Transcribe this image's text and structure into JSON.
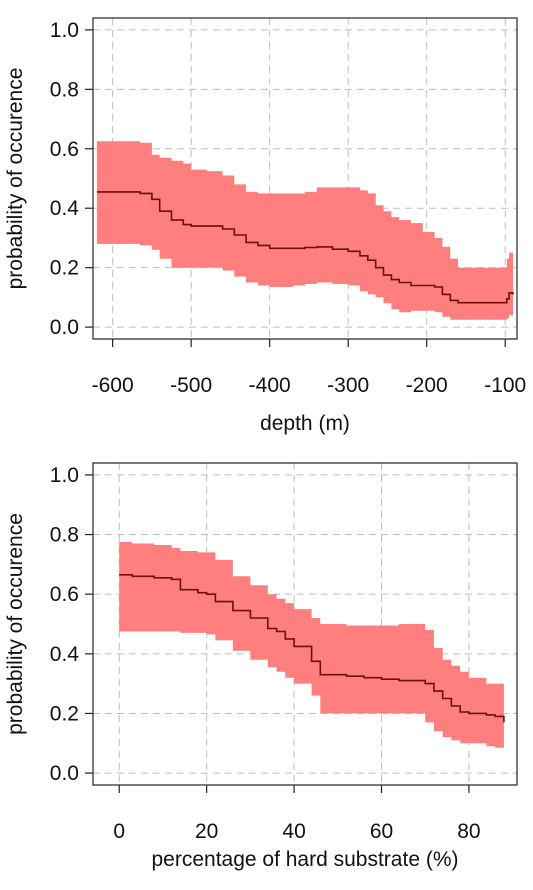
{
  "colors": {
    "band": "#ff7f7f",
    "line": "#6b0f0f",
    "grid": "#bdbdbd"
  },
  "chart_data": [
    {
      "type": "area",
      "xlabel": "depth (m)",
      "ylabel": "probability of occurence",
      "xlim": [
        -625,
        -85
      ],
      "ylim": [
        0,
        1.0
      ],
      "xticks": [
        -600,
        -500,
        -400,
        -300,
        -200,
        -100
      ],
      "xtick_labels": [
        "-600",
        "-500",
        "-400",
        "-300",
        "-200",
        "-100"
      ],
      "yticks": [
        0.0,
        0.2,
        0.4,
        0.6,
        0.8,
        1.0
      ],
      "ytick_labels": [
        "0.0",
        "0.2",
        "0.4",
        "0.6",
        "0.8",
        "1.0"
      ],
      "grid": true,
      "x": [
        -620,
        -600,
        -580,
        -565,
        -550,
        -540,
        -525,
        -510,
        -500,
        -480,
        -460,
        -445,
        -430,
        -415,
        -400,
        -385,
        -370,
        -355,
        -340,
        -320,
        -300,
        -285,
        -275,
        -265,
        -255,
        -245,
        -235,
        -220,
        -205,
        -190,
        -180,
        -170,
        -160,
        -145,
        -130,
        -120,
        -110,
        -105,
        -98,
        -95,
        -90
      ],
      "mean": [
        0.455,
        0.455,
        0.455,
        0.45,
        0.43,
        0.39,
        0.36,
        0.345,
        0.34,
        0.34,
        0.33,
        0.31,
        0.285,
        0.275,
        0.265,
        0.265,
        0.265,
        0.268,
        0.27,
        0.262,
        0.255,
        0.24,
        0.225,
        0.2,
        0.175,
        0.16,
        0.15,
        0.14,
        0.14,
        0.135,
        0.11,
        0.09,
        0.082,
        0.082,
        0.082,
        0.082,
        0.082,
        0.082,
        0.095,
        0.115,
        0.11
      ],
      "upper": [
        0.625,
        0.625,
        0.625,
        0.62,
        0.58,
        0.57,
        0.56,
        0.55,
        0.53,
        0.525,
        0.51,
        0.48,
        0.455,
        0.45,
        0.45,
        0.45,
        0.45,
        0.455,
        0.47,
        0.47,
        0.47,
        0.46,
        0.45,
        0.41,
        0.39,
        0.37,
        0.36,
        0.35,
        0.32,
        0.3,
        0.27,
        0.23,
        0.2,
        0.2,
        0.2,
        0.2,
        0.2,
        0.2,
        0.23,
        0.25,
        0.21
      ],
      "lower": [
        0.28,
        0.28,
        0.28,
        0.275,
        0.26,
        0.23,
        0.2,
        0.2,
        0.2,
        0.2,
        0.19,
        0.17,
        0.15,
        0.14,
        0.135,
        0.135,
        0.14,
        0.145,
        0.15,
        0.145,
        0.14,
        0.12,
        0.11,
        0.1,
        0.08,
        0.06,
        0.05,
        0.055,
        0.055,
        0.05,
        0.035,
        0.025,
        0.025,
        0.025,
        0.025,
        0.025,
        0.025,
        0.025,
        0.03,
        0.04,
        0.04
      ]
    },
    {
      "type": "area",
      "xlabel": "percentage of hard substrate (%)",
      "ylabel": "probability of occurence",
      "xlim": [
        -6,
        91
      ],
      "ylim": [
        0,
        1.0
      ],
      "xticks": [
        0,
        20,
        40,
        60,
        80
      ],
      "xtick_labels": [
        "0",
        "20",
        "40",
        "60",
        "80"
      ],
      "yticks": [
        0.0,
        0.2,
        0.4,
        0.6,
        0.8,
        1.0
      ],
      "ytick_labels": [
        "0.0",
        "0.2",
        "0.4",
        "0.6",
        "0.8",
        "1.0"
      ],
      "grid": true,
      "x": [
        0,
        3,
        8,
        12,
        14,
        18,
        20,
        22,
        26,
        30,
        34,
        36,
        38,
        40,
        44,
        46,
        48,
        52,
        56,
        60,
        64,
        68,
        70,
        72,
        74,
        76,
        78,
        80,
        84,
        86,
        88
      ],
      "mean": [
        0.665,
        0.66,
        0.655,
        0.65,
        0.615,
        0.605,
        0.6,
        0.575,
        0.545,
        0.52,
        0.485,
        0.475,
        0.45,
        0.425,
        0.375,
        0.33,
        0.33,
        0.325,
        0.32,
        0.315,
        0.31,
        0.31,
        0.3,
        0.275,
        0.25,
        0.225,
        0.205,
        0.2,
        0.195,
        0.19,
        0.17
      ],
      "upper": [
        0.775,
        0.77,
        0.765,
        0.755,
        0.745,
        0.74,
        0.74,
        0.715,
        0.66,
        0.63,
        0.6,
        0.585,
        0.57,
        0.55,
        0.52,
        0.5,
        0.5,
        0.495,
        0.495,
        0.495,
        0.5,
        0.5,
        0.48,
        0.42,
        0.38,
        0.36,
        0.34,
        0.32,
        0.3,
        0.3,
        0.29
      ],
      "lower": [
        0.475,
        0.475,
        0.475,
        0.475,
        0.47,
        0.47,
        0.465,
        0.445,
        0.41,
        0.38,
        0.355,
        0.34,
        0.32,
        0.3,
        0.26,
        0.2,
        0.2,
        0.2,
        0.2,
        0.2,
        0.2,
        0.2,
        0.17,
        0.14,
        0.12,
        0.11,
        0.1,
        0.1,
        0.09,
        0.085,
        0.08
      ]
    }
  ]
}
